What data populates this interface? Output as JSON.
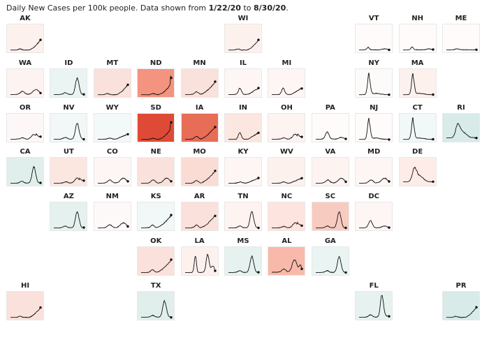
{
  "caption": {
    "prefix": "Daily New Cases per 100k people. Data shown from ",
    "start": "1/22/20",
    "mid": " to ",
    "end": "8/30/20",
    "suffix": "."
  },
  "colors": {
    "high": "#d7301f",
    "low": "#2f8f86",
    "line": "#111111"
  },
  "chart_data": {
    "type": "line",
    "layout": "tile-grid-map",
    "series": [
      {
        "name": "AK",
        "col": 0,
        "row": 0,
        "fill": "#fdf1ee",
        "shape": "late"
      },
      {
        "name": "WI",
        "col": 5,
        "row": 0,
        "fill": "#fdf1ee",
        "shape": "late"
      },
      {
        "name": "VT",
        "col": 8,
        "row": 0,
        "fill": "#fefbfa",
        "shape": "flat_bump"
      },
      {
        "name": "NH",
        "col": 9,
        "row": 0,
        "fill": "#fefbfa",
        "shape": "flat_bump"
      },
      {
        "name": "ME",
        "col": 10,
        "row": 0,
        "fill": "#fefbfa",
        "shape": "flat"
      },
      {
        "name": "WA",
        "col": 0,
        "row": 1,
        "fill": "#fdf3f1",
        "shape": "two_wave"
      },
      {
        "name": "ID",
        "col": 1,
        "row": 1,
        "fill": "#eaf4f2",
        "shape": "summer_peak"
      },
      {
        "name": "MT",
        "col": 2,
        "row": 1,
        "fill": "#fbe1db",
        "shape": "late"
      },
      {
        "name": "ND",
        "col": 3,
        "row": 1,
        "fill": "#f4937f",
        "shape": "late_spike"
      },
      {
        "name": "MN",
        "col": 4,
        "row": 1,
        "fill": "#fbe1db",
        "shape": "rising"
      },
      {
        "name": "IL",
        "col": 5,
        "row": 1,
        "fill": "#fdf6f4",
        "shape": "early_late"
      },
      {
        "name": "MI",
        "col": 6,
        "row": 1,
        "fill": "#fdf6f4",
        "shape": "early_late"
      },
      {
        "name": "NY",
        "col": 8,
        "row": 1,
        "fill": "#fdfbfa",
        "shape": "early_peak"
      },
      {
        "name": "MA",
        "col": 9,
        "row": 1,
        "fill": "#fdf1ee",
        "shape": "early_peak"
      },
      {
        "name": "OR",
        "col": 0,
        "row": 2,
        "fill": "#fdf8f7",
        "shape": "summer_small"
      },
      {
        "name": "NV",
        "col": 1,
        "row": 2,
        "fill": "#f1f8f7",
        "shape": "summer_peak"
      },
      {
        "name": "WY",
        "col": 2,
        "row": 2,
        "fill": "#f3f9f8",
        "shape": "low_rising"
      },
      {
        "name": "SD",
        "col": 3,
        "row": 2,
        "fill": "#df4a36",
        "shape": "late_spike"
      },
      {
        "name": "IA",
        "col": 4,
        "row": 2,
        "fill": "#e76d57",
        "shape": "rising"
      },
      {
        "name": "IN",
        "col": 5,
        "row": 2,
        "fill": "#fbe6e0",
        "shape": "early_late"
      },
      {
        "name": "OH",
        "col": 6,
        "row": 2,
        "fill": "#fdf3f1",
        "shape": "summer_small"
      },
      {
        "name": "PA",
        "col": 7,
        "row": 2,
        "fill": "#fefbfa",
        "shape": "early_small"
      },
      {
        "name": "NJ",
        "col": 8,
        "row": 2,
        "fill": "#fefbfa",
        "shape": "early_peak"
      },
      {
        "name": "CT",
        "col": 9,
        "row": 2,
        "fill": "#f1f8f7",
        "shape": "early_peak"
      },
      {
        "name": "RI",
        "col": 10,
        "row": 2,
        "fill": "#d8ebe8",
        "shape": "early_noisy"
      },
      {
        "name": "CA",
        "col": 0,
        "row": 3,
        "fill": "#e1efec",
        "shape": "summer_peak"
      },
      {
        "name": "UT",
        "col": 1,
        "row": 3,
        "fill": "#fbe6e0",
        "shape": "summer_small"
      },
      {
        "name": "CO",
        "col": 2,
        "row": 3,
        "fill": "#fdf6f4",
        "shape": "two_wave"
      },
      {
        "name": "NE",
        "col": 3,
        "row": 3,
        "fill": "#fbe1db",
        "shape": "two_wave"
      },
      {
        "name": "MO",
        "col": 4,
        "row": 3,
        "fill": "#fbdcd5",
        "shape": "rising"
      },
      {
        "name": "KY",
        "col": 5,
        "row": 3,
        "fill": "#fdf6f4",
        "shape": "low_rising"
      },
      {
        "name": "WV",
        "col": 6,
        "row": 3,
        "fill": "#fdf1ee",
        "shape": "low_rising"
      },
      {
        "name": "VA",
        "col": 7,
        "row": 3,
        "fill": "#fdf3f1",
        "shape": "two_wave"
      },
      {
        "name": "MD",
        "col": 8,
        "row": 3,
        "fill": "#fdf6f4",
        "shape": "two_wave"
      },
      {
        "name": "DE",
        "col": 9,
        "row": 3,
        "fill": "#fdece8",
        "shape": "early_noisy"
      },
      {
        "name": "AZ",
        "col": 1,
        "row": 4,
        "fill": "#e4f1ef",
        "shape": "summer_peak"
      },
      {
        "name": "NM",
        "col": 2,
        "row": 4,
        "fill": "#fdf9f8",
        "shape": "two_wave"
      },
      {
        "name": "KS",
        "col": 3,
        "row": 4,
        "fill": "#f1f8f7",
        "shape": "rising"
      },
      {
        "name": "AR",
        "col": 4,
        "row": 4,
        "fill": "#fbe1db",
        "shape": "rising"
      },
      {
        "name": "TN",
        "col": 5,
        "row": 4,
        "fill": "#fdf3f1",
        "shape": "summer_peak"
      },
      {
        "name": "NC",
        "col": 6,
        "row": 4,
        "fill": "#fde4de",
        "shape": "summer_small"
      },
      {
        "name": "SC",
        "col": 7,
        "row": 4,
        "fill": "#f8cbc0",
        "shape": "summer_peak"
      },
      {
        "name": "DC",
        "col": 8,
        "row": 4,
        "fill": "#fdf6f4",
        "shape": "early_small"
      },
      {
        "name": "OK",
        "col": 3,
        "row": 5,
        "fill": "#fbe1db",
        "shape": "rising"
      },
      {
        "name": "LA",
        "col": 4,
        "row": 5,
        "fill": "#fdf1ee",
        "shape": "la"
      },
      {
        "name": "MS",
        "col": 5,
        "row": 5,
        "fill": "#e6f2f0",
        "shape": "summer_peak"
      },
      {
        "name": "AL",
        "col": 6,
        "row": 5,
        "fill": "#f9b9aa",
        "shape": "summer_noisy"
      },
      {
        "name": "GA",
        "col": 7,
        "row": 5,
        "fill": "#eaf4f2",
        "shape": "summer_peak"
      },
      {
        "name": "HI",
        "col": 0,
        "row": 6,
        "fill": "#fbe1db",
        "shape": "late"
      },
      {
        "name": "TX",
        "col": 3,
        "row": 6,
        "fill": "#e1efec",
        "shape": "summer_peak"
      },
      {
        "name": "FL",
        "col": 8,
        "row": 6,
        "fill": "#e6f2f0",
        "shape": "fl"
      },
      {
        "name": "PR",
        "col": 10,
        "row": 6,
        "fill": "#d8ebe8",
        "shape": "late"
      }
    ]
  }
}
